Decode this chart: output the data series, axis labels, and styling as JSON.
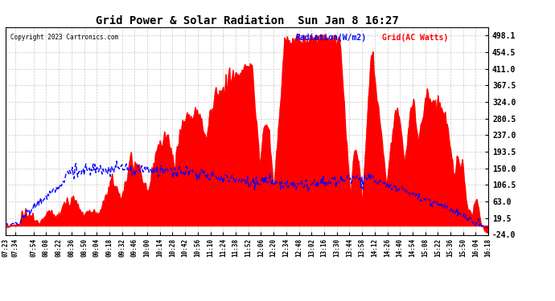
{
  "title": "Grid Power & Solar Radiation  Sun Jan 8 16:27",
  "copyright": "Copyright 2023 Cartronics.com",
  "legend_radiation": "Radiation(W/m2)",
  "legend_grid": "Grid(AC Watts)",
  "legend_radiation_color": "blue",
  "legend_grid_color": "red",
  "yticks": [
    498.1,
    454.5,
    411.0,
    367.5,
    324.0,
    280.5,
    237.0,
    193.5,
    150.0,
    106.5,
    63.0,
    19.5,
    -24.0
  ],
  "ymin": -24.0,
  "ymax": 520.0,
  "background_color": "#ffffff",
  "plot_bg_color": "#ffffff",
  "grid_color": "#bbbbbb",
  "fill_color": "red",
  "line_color": "blue",
  "xtick_labels": [
    "07:23",
    "07:34",
    "07:54",
    "08:08",
    "08:22",
    "08:36",
    "08:50",
    "09:04",
    "09:18",
    "09:32",
    "09:46",
    "10:00",
    "10:14",
    "10:28",
    "10:42",
    "10:56",
    "11:10",
    "11:24",
    "11:38",
    "11:52",
    "12:06",
    "12:20",
    "12:34",
    "12:48",
    "13:02",
    "13:16",
    "13:30",
    "13:44",
    "13:58",
    "14:12",
    "14:26",
    "14:40",
    "14:54",
    "15:08",
    "15:22",
    "15:36",
    "15:50",
    "16:04",
    "16:18"
  ]
}
